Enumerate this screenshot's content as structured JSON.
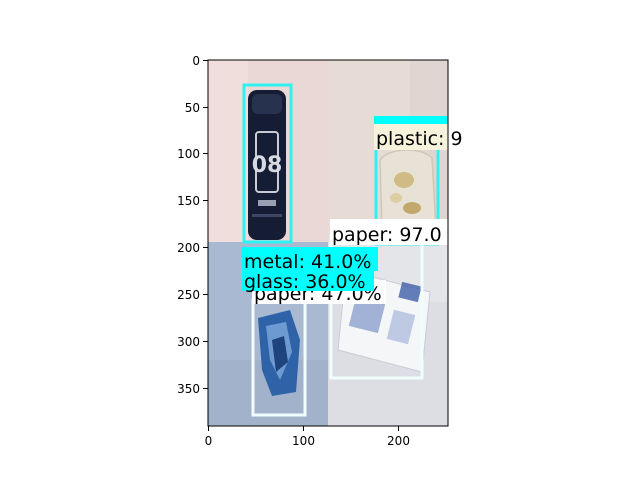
{
  "figure": {
    "x_ticks": [
      "0",
      "100",
      "200"
    ],
    "y_ticks": [
      "0",
      "50",
      "100",
      "150",
      "200",
      "250",
      "300",
      "350"
    ]
  },
  "detections": [
    {
      "label": "metal: 41.0%",
      "box_color": "#2ef2f2",
      "label_bg": "#00ffff"
    },
    {
      "label": "plastic: 9",
      "box_color": "#2ef2f2",
      "label_bg": "#f7f2dc"
    },
    {
      "label": "paper: 97.0",
      "box_color": "#f0fdfd",
      "label_bg": "#ffffff"
    },
    {
      "label": "glass: 36.0%",
      "box_color": "#2ef2f2",
      "label_bg": "#00ffff"
    },
    {
      "label": "paper: 47.0%",
      "box_color": "#f0fdfd",
      "label_bg": "#ffffff"
    }
  ],
  "colors": {
    "tile_top_left": "#ead8d6",
    "tile_top_right": "#e8dcd6",
    "tile_bottom_left": "#a9b9d2",
    "tile_bottom_right": "#dcdee3",
    "can_dark": "#141d33",
    "wrapper_blue": "#2f63a8"
  }
}
